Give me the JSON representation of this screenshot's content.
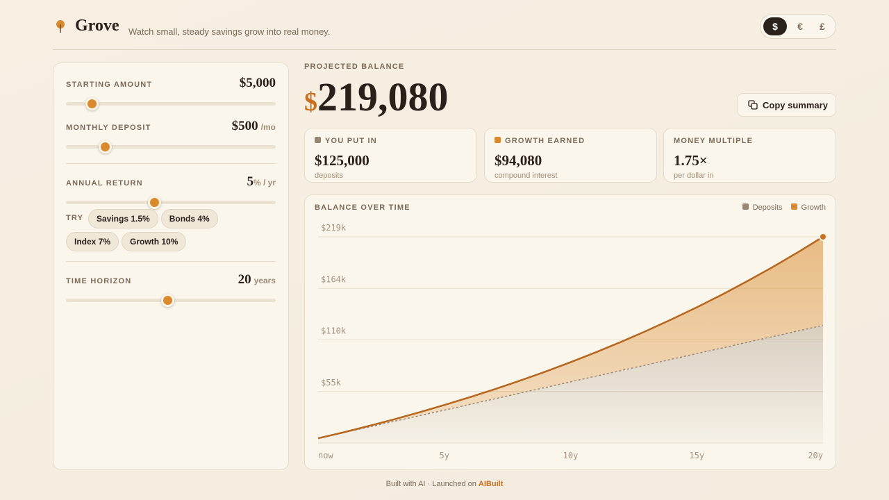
{
  "header": {
    "logo": "Grove",
    "tagline": "Watch small, steady savings grow into real money.",
    "currencies": [
      "$",
      "€",
      "£"
    ]
  },
  "controls": {
    "starting": {
      "label": "STARTING AMOUNT",
      "value": "$5,000"
    },
    "deposit": {
      "label": "MONTHLY DEPOSIT",
      "value": "$500",
      "unit": "/mo"
    },
    "return": {
      "label": "ANNUAL RETURN",
      "value": "5",
      "unit": "% / yr",
      "try_label": "TRY",
      "presets": [
        "Savings 1.5%",
        "Bonds 4%",
        "Index 7%",
        "Growth 10%"
      ]
    },
    "horizon": {
      "label": "TIME HORIZON",
      "value": "20",
      "unit": "years"
    }
  },
  "summary": {
    "label": "PROJECTED BALANCE",
    "currency": "$",
    "amount": "219,080",
    "copy": "Copy summary",
    "cards": [
      {
        "label": "YOU PUT IN",
        "value": "$125,000",
        "sub": "deposits"
      },
      {
        "label": "GROWTH EARNED",
        "value": "$94,080",
        "sub": "compound interest"
      },
      {
        "label": "MONEY MULTIPLE",
        "value": "1.75×",
        "sub": "per dollar in"
      }
    ]
  },
  "chart_data": {
    "type": "area",
    "title": "BALANCE OVER TIME",
    "stacked": true,
    "x": [
      0,
      1,
      2,
      3,
      4,
      5,
      6,
      7,
      8,
      9,
      10,
      11,
      12,
      13,
      14,
      15,
      16,
      17,
      18,
      19,
      20
    ],
    "series": [
      {
        "name": "Deposits",
        "color": "#9a8670",
        "values": [
          5000,
          11000,
          17000,
          23000,
          29000,
          35000,
          41000,
          47000,
          53000,
          59000,
          65000,
          71000,
          77000,
          83000,
          89000,
          95000,
          101000,
          107000,
          113000,
          119000,
          125000
        ]
      },
      {
        "name": "Growth",
        "color": "#d98a2e",
        "values": [
          0,
          395,
          1118,
          2184,
          3612,
          5420,
          7627,
          10255,
          13323,
          16856,
          20876,
          25409,
          30481,
          36120,
          42353,
          49213,
          56731,
          64940,
          73876,
          83576,
          94080
        ]
      }
    ],
    "xlim": [
      0,
      20
    ],
    "xticks": [
      {
        "value": 0,
        "label": "now"
      },
      {
        "value": 5,
        "label": "5y"
      },
      {
        "value": 10,
        "label": "10y"
      },
      {
        "value": 15,
        "label": "15y"
      },
      {
        "value": 20,
        "label": "20y"
      }
    ],
    "ylim": [
      0,
      219080
    ],
    "yticks": [
      {
        "value": 54770,
        "label": "$55k"
      },
      {
        "value": 109540,
        "label": "$110k"
      },
      {
        "value": 164310,
        "label": "$164k"
      },
      {
        "value": 219080,
        "label": "$219k"
      }
    ],
    "grid": true
  },
  "footer": {
    "text": "Built with AI · Launched on",
    "link": "AIBuilt"
  }
}
